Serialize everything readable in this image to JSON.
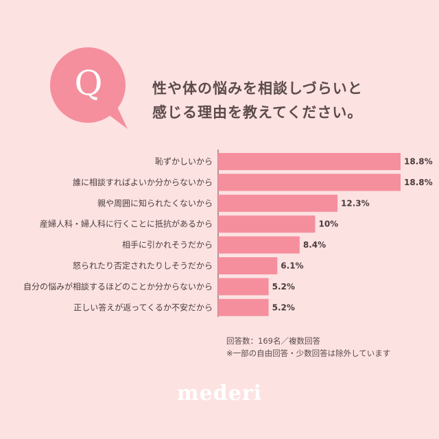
{
  "question": {
    "badge": "Q",
    "line1": "性や体の悩みを相談しづらいと",
    "line2": "感じる理由を教えてください。"
  },
  "chart_data": {
    "type": "bar",
    "orientation": "horizontal",
    "categories": [
      "恥ずかしいから",
      "誰に相談すればよいか分からないから",
      "親や周囲に知られたくないから",
      "産婦人科・婦人科に行くことに抵抗があるから",
      "相手に引かれそうだから",
      "怒られたり否定されたりしそうだから",
      "自分の悩みが相談するほどのことか分からないから",
      "正しい答えが返ってくるか不安だから"
    ],
    "values": [
      18.8,
      18.8,
      12.3,
      10,
      8.4,
      6.1,
      5.2,
      5.2
    ],
    "value_labels": [
      "18.8%",
      "18.8%",
      "12.3%",
      "10%",
      "8.4%",
      "6.1%",
      "5.2%",
      "5.2%"
    ],
    "bar_color": "#f58f9d",
    "xlim": [
      0,
      18.8
    ],
    "grid": false,
    "legend": "none"
  },
  "notes": {
    "line1": "回答数：169名／複数回答",
    "line2": "※一部の自由回答・少数回答は除外しています"
  },
  "brand": {
    "logo": "mederi"
  },
  "colors": {
    "background": "#fde2e2",
    "accent": "#f58f9d",
    "text": "#5a4a4a"
  }
}
